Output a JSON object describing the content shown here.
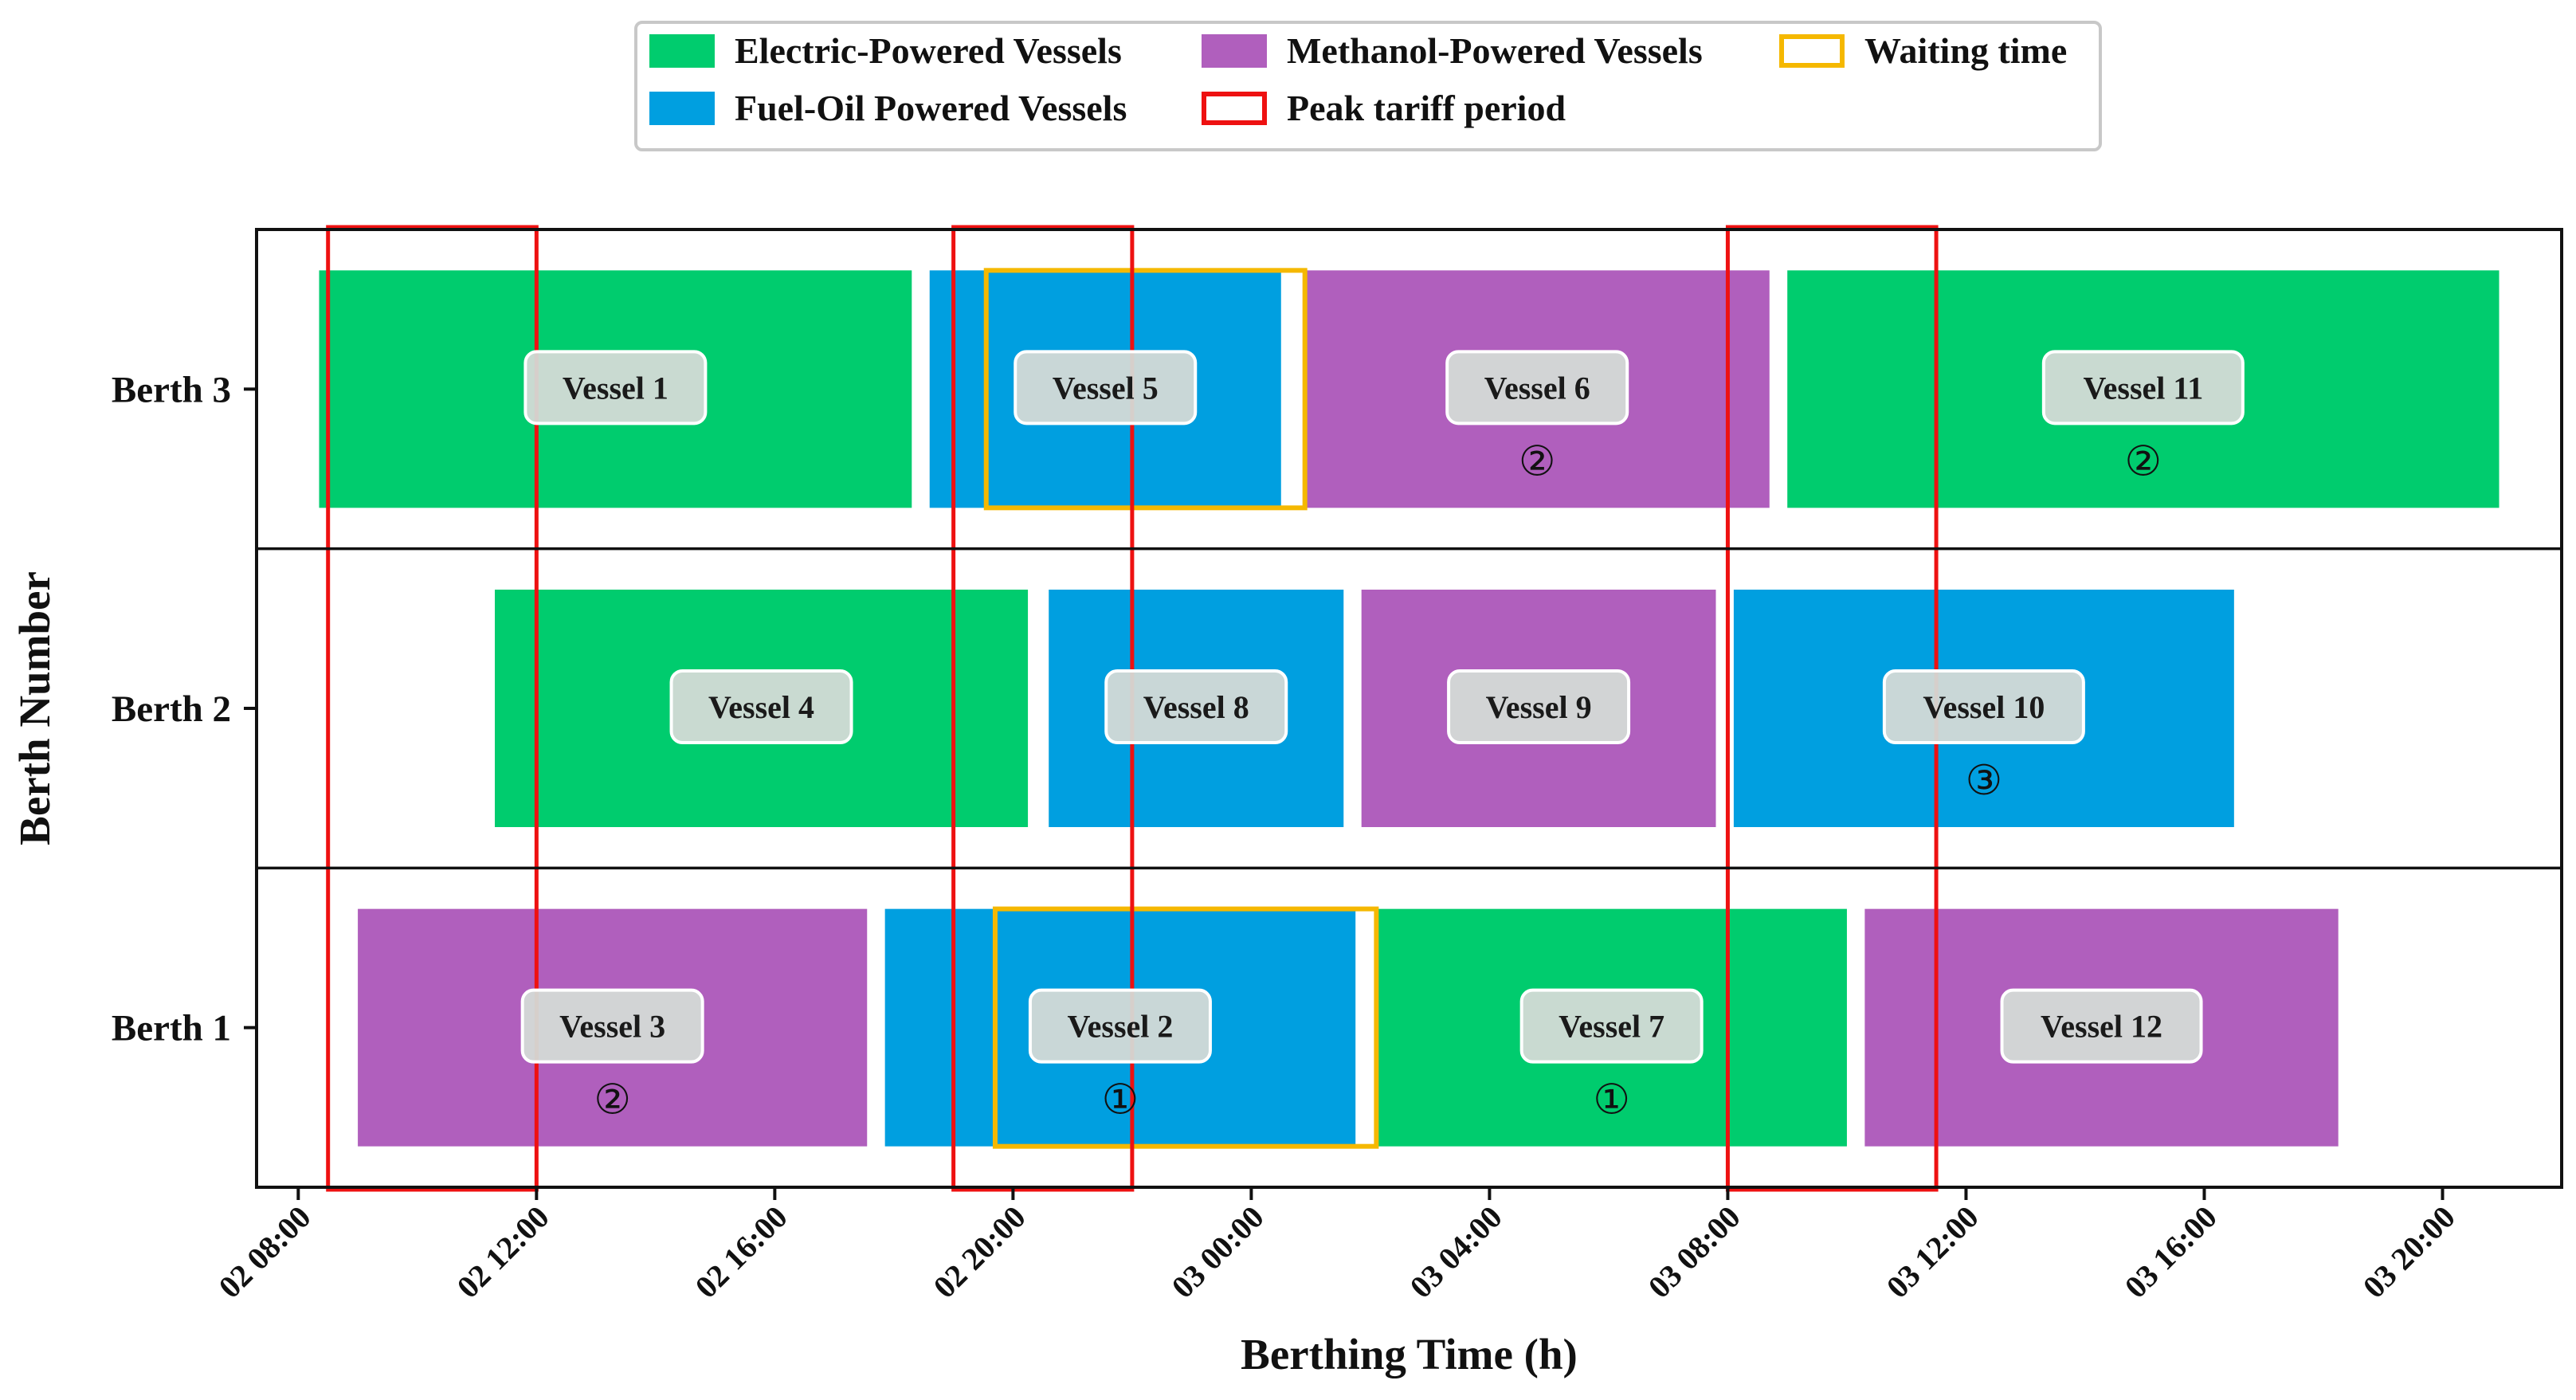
{
  "chart_data": {
    "type": "gantt",
    "xlabel": "Berthing Time (h)",
    "ylabel": "Berth Number",
    "x_ticks": [
      "02 08:00",
      "02 12:00",
      "02 16:00",
      "02 20:00",
      "03 00:00",
      "03 04:00",
      "03 08:00",
      "03 12:00",
      "03 16:00",
      "03 20:00"
    ],
    "xlim_hours": [
      7.3,
      46.0
    ],
    "berths": [
      "Berth 1",
      "Berth 2",
      "Berth 3"
    ],
    "colors": {
      "electric": "#00cc6e",
      "fuel_oil": "#009fe0",
      "methanol": "#b05fbd",
      "waiting": "#f5b800",
      "peak": "#ee1111"
    },
    "legend": [
      {
        "key": "electric",
        "label": "Electric-Powered Vessels",
        "style": "fill"
      },
      {
        "key": "methanol",
        "label": "Methanol-Powered Vessels",
        "style": "fill"
      },
      {
        "key": "waiting",
        "label": "Waiting time",
        "style": "outline"
      },
      {
        "key": "fuel_oil",
        "label": "Fuel-Oil Powered Vessels",
        "style": "fill"
      },
      {
        "key": "peak",
        "label": "Peak tariff period",
        "style": "outline"
      }
    ],
    "vessels": [
      {
        "label": "Vessel 1",
        "berth": 3,
        "type": "electric",
        "start": 8.35,
        "end": 18.3,
        "marker": ""
      },
      {
        "label": "Vessel 5",
        "berth": 3,
        "type": "fuel_oil",
        "start": 18.6,
        "end": 24.5,
        "marker": ""
      },
      {
        "label": "Vessel 6",
        "berth": 3,
        "type": "methanol",
        "start": 24.9,
        "end": 32.7,
        "marker": "②"
      },
      {
        "label": "Vessel 11",
        "berth": 3,
        "type": "electric",
        "start": 33.0,
        "end": 44.95,
        "marker": "②"
      },
      {
        "label": "Vessel 4",
        "berth": 2,
        "type": "electric",
        "start": 11.3,
        "end": 20.25,
        "marker": ""
      },
      {
        "label": "Vessel 8",
        "berth": 2,
        "type": "fuel_oil",
        "start": 20.6,
        "end": 25.55,
        "marker": ""
      },
      {
        "label": "Vessel 9",
        "berth": 2,
        "type": "methanol",
        "start": 25.85,
        "end": 31.8,
        "marker": ""
      },
      {
        "label": "Vessel 10",
        "berth": 2,
        "type": "fuel_oil",
        "start": 32.1,
        "end": 40.5,
        "marker": "③"
      },
      {
        "label": "Vessel 3",
        "berth": 1,
        "type": "methanol",
        "start": 9.0,
        "end": 17.55,
        "marker": "②"
      },
      {
        "label": "Vessel 2",
        "berth": 1,
        "type": "fuel_oil",
        "start": 17.85,
        "end": 25.75,
        "marker": "①"
      },
      {
        "label": "Vessel 7",
        "berth": 1,
        "type": "electric",
        "start": 26.1,
        "end": 34.0,
        "marker": "①"
      },
      {
        "label": "Vessel 12",
        "berth": 1,
        "type": "methanol",
        "start": 34.3,
        "end": 42.25,
        "marker": ""
      }
    ],
    "waiting_periods": [
      {
        "berth": 3,
        "start": 19.55,
        "end": 24.9
      },
      {
        "berth": 1,
        "start": 19.7,
        "end": 26.1
      }
    ],
    "peak_periods": [
      {
        "start": 8.5,
        "end": 12.0
      },
      {
        "start": 19.0,
        "end": 22.0
      },
      {
        "start": 32.0,
        "end": 35.5
      }
    ]
  }
}
